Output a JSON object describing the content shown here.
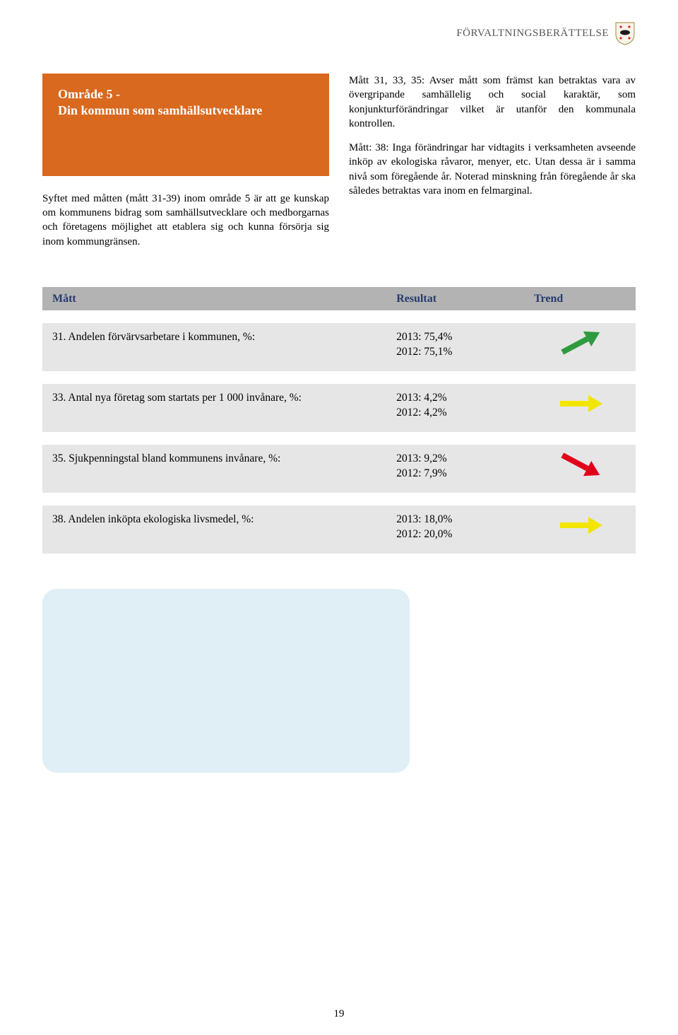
{
  "header": {
    "title": "FÖRVALTNINGSBERÄTTELSE"
  },
  "callout": {
    "title": "Område 5 -",
    "subtitle": "Din kommun som samhällsutvecklare"
  },
  "left_paragraph": "Syftet med måtten (mått 31-39) inom område 5 är att ge kunskap om kommunens bidrag som samhällsutvecklare och medborgarnas och företagens möjlighet att etablera sig och kunna försörja sig inom kommungränsen.",
  "right_paragraph_1": "Mått 31, 33, 35: Avser mått som främst kan betraktas vara av övergripande samhällelig och social karaktär, som konjunkturförändringar vilket är utanför den kommunala kontrollen.",
  "right_paragraph_2": "Mått: 38: Inga förändringar har vidtagits i verksamheten avseende inköp av ekologiska råvaror, menyer, etc. Utan dessa är i samma nivå som föregående år. Noterad minskning från föregående år ska således betraktas vara inom en felmarginal.",
  "table": {
    "headers": {
      "matt": "Mått",
      "resultat": "Resultat",
      "trend": "Trend"
    },
    "rows": [
      {
        "label": "31. Andelen förvärvsarbetare i kommunen, %:",
        "line1": "2013: 75,4%",
        "line2": "2012: 75,1%",
        "trend": "up",
        "color": "#2e9b3f"
      },
      {
        "label": "33. Antal nya företag som startats per 1 000 invånare, %:",
        "line1": "2013: 4,2%",
        "line2": "2012: 4,2%",
        "trend": "flat",
        "color": "#f2e600"
      },
      {
        "label": "35. Sjukpenningstal bland kommunens invånare, %:",
        "line1": "2013: 9,2%",
        "line2": "2012: 7,9%",
        "trend": "down",
        "color": "#e1001a"
      },
      {
        "label": "38. Andelen inköpta ekologiska livsmedel, %:",
        "line1": "2013: 18,0%",
        "line2": "2012: 20,0%",
        "trend": "flat",
        "color": "#f2e600"
      }
    ]
  },
  "page_number": "19",
  "crest_colors": {
    "shield": "#fefefe",
    "border": "#a28c4a",
    "animal": "#1a1a1a",
    "star": "#d22"
  }
}
